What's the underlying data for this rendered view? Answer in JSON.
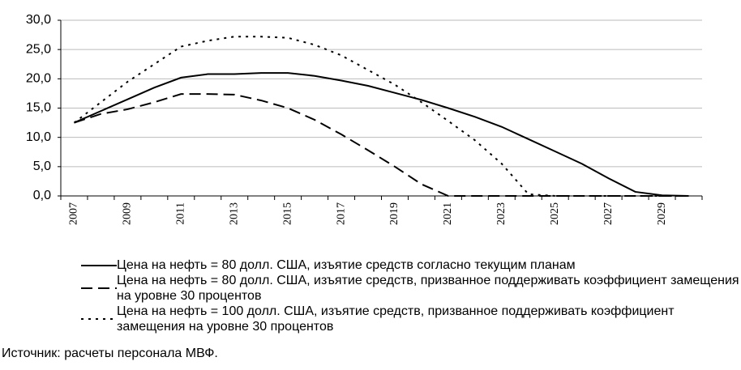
{
  "chart_data": {
    "type": "line",
    "categories": [
      "2007",
      null,
      "2009",
      null,
      "2011",
      null,
      "2013",
      null,
      "2015",
      null,
      "2017",
      null,
      "2019",
      null,
      "2021",
      null,
      "2023",
      null,
      "2025",
      null,
      "2027",
      null,
      "2029",
      null
    ],
    "series": [
      {
        "name": "Цена на нефть = 80 долл. США, изъятие средств согласно текущим планам",
        "color": "#000000",
        "dash": "solid",
        "values": [
          12.5,
          14.5,
          16.5,
          18.5,
          20.2,
          20.8,
          20.8,
          21.0,
          21.0,
          20.5,
          19.7,
          18.8,
          17.6,
          16.4,
          15.0,
          13.5,
          11.8,
          9.7,
          7.6,
          5.5,
          3.0,
          0.7,
          0.1,
          0.0
        ]
      },
      {
        "name": "Цена на нефть = 80 долл. США, изъятие средств, призванное поддерживать коэффициент замещения на уровне 30 процентов",
        "color": "#000000",
        "dash": "dashed",
        "values": [
          12.5,
          14.0,
          14.8,
          16.0,
          17.4,
          17.4,
          17.3,
          16.3,
          15.0,
          13.0,
          10.5,
          7.8,
          5.0,
          2.0,
          0.0,
          0.0,
          0.0,
          0.0,
          0.0,
          0.0,
          0.0,
          0.0,
          0.0,
          0.0
        ]
      },
      {
        "name": "Цена на нефть = 100 долл. США, изъятие средств, призванное поддерживать коэффициент замещения на уровне 30 процентов",
        "color": "#000000",
        "dash": "dotted",
        "values": [
          12.5,
          16.0,
          19.5,
          22.5,
          25.5,
          26.5,
          27.2,
          27.2,
          27.0,
          25.8,
          24.0,
          21.5,
          19.0,
          16.0,
          12.8,
          9.5,
          5.5,
          0.3,
          0.0,
          0.0,
          0.0,
          0.0,
          0.0,
          0.0
        ]
      }
    ],
    "ylim": [
      0,
      30
    ],
    "yticks": [
      {
        "value": 0,
        "label": "0,0"
      },
      {
        "value": 5,
        "label": "5,0"
      },
      {
        "value": 10,
        "label": "10,0"
      },
      {
        "value": 15,
        "label": "15,0"
      },
      {
        "value": 20,
        "label": "20,0"
      },
      {
        "value": 25,
        "label": "25,0"
      },
      {
        "value": 30,
        "label": "30,0"
      }
    ],
    "grid": true,
    "source": "Источник: расчеты персонала МВФ."
  }
}
